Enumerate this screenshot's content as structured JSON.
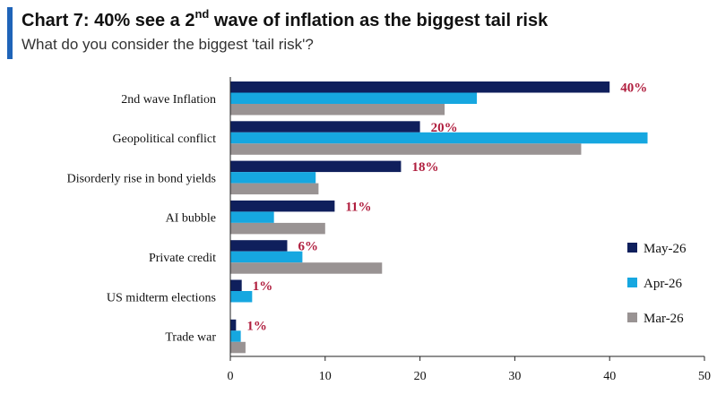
{
  "title": {
    "prefix": "Chart 7: 40% see a 2",
    "superscript": "nd",
    "suffix": " wave of inflation as the biggest tail risk"
  },
  "subtitle": "What do you consider the biggest 'tail risk'?",
  "colors": {
    "accent": "#1f64b8",
    "May-26": "#0f1f5c",
    "Apr-26": "#16a7e0",
    "Mar-26": "#999393",
    "data_label": "#b01e3e"
  },
  "chart_data": {
    "type": "bar",
    "orientation": "horizontal",
    "categories": [
      "2nd wave Inflation",
      "Geopolitical conflict",
      "Disorderly rise in bond yields",
      "AI bubble",
      "Private credit",
      "US midterm elections",
      "Trade war"
    ],
    "series": [
      {
        "name": "May-26",
        "values": [
          40,
          20,
          18,
          11,
          6,
          1.2,
          0.6
        ]
      },
      {
        "name": "Apr-26",
        "values": [
          26,
          44,
          9,
          4.6,
          7.6,
          2.3,
          1.1
        ]
      },
      {
        "name": "Mar-26",
        "values": [
          22.6,
          37,
          9.3,
          10,
          16,
          0,
          1.6
        ]
      }
    ],
    "data_labels": [
      "40%",
      "20%",
      "18%",
      "11%",
      "6%",
      "1%",
      "1%"
    ],
    "xlim": [
      0,
      50
    ],
    "xticks": [
      0,
      10,
      20,
      30,
      40,
      50
    ],
    "legend": [
      "May-26",
      "Apr-26",
      "Mar-26"
    ],
    "legend_position": "right",
    "grid": false
  }
}
